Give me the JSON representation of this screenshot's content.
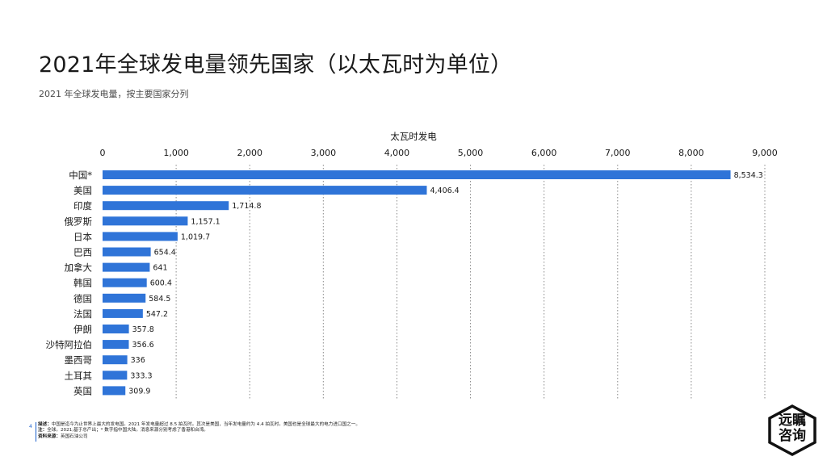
{
  "title": "2021年全球发电量领先国家（以太瓦时为单位）",
  "subtitle": "2021 年全球发电量，按主要国家分列",
  "chart_data": {
    "type": "bar",
    "orientation": "horizontal",
    "xlabel": "太瓦时发电",
    "xlim": [
      0,
      9000
    ],
    "x_ticks": [
      0,
      1000,
      2000,
      3000,
      4000,
      5000,
      6000,
      7000,
      8000,
      9000
    ],
    "x_tick_labels": [
      "0",
      "1,000",
      "2,000",
      "3,000",
      "4,000",
      "5,000",
      "6,000",
      "7,000",
      "8,000",
      "9,000"
    ],
    "grid": "vertical dotted",
    "categories": [
      "中国*",
      "美国",
      "印度",
      "俄罗斯",
      "日本",
      "巴西",
      "加拿大",
      "韩国",
      "德国",
      "法国",
      "伊朗",
      "沙特阿拉伯",
      "墨西哥",
      "土耳其",
      "英国"
    ],
    "values": [
      8534.3,
      4406.4,
      1714.8,
      1157.1,
      1019.7,
      654.4,
      641,
      600.4,
      584.5,
      547.2,
      357.8,
      356.6,
      336,
      333.3,
      309.9
    ],
    "value_labels": [
      "8,534.3",
      "4,406.4",
      "1,714.8",
      "1,157.1",
      "1,019.7",
      "654.4",
      "641",
      "600.4",
      "584.5",
      "547.2",
      "357.8",
      "356.6",
      "336",
      "333.3",
      "309.9"
    ],
    "bar_color": "#2f74d8"
  },
  "footer": {
    "page_number": "4",
    "description_label": "描述：",
    "description_text": "中国是迄今为止世界上最大的发电国。2021 年发电量超过 8.5 拍瓦时。其次是美国，当年发电量约为 4.4 拍瓦时。美国也是全球最大的电力进口国之一。",
    "note_label": "注：",
    "note_text": "全球。2021;基于总产出；* 数字指中国大陆。消息来源分别考虑了香港和台湾。",
    "source_label": "资料来源：",
    "source_text": "英国石油公司"
  },
  "logo": {
    "line1": "远瞩",
    "line2": "咨询"
  },
  "colors": {
    "bar": "#2f74d8",
    "accent": "#1a5fcc",
    "grid": "#8a8a8a"
  }
}
